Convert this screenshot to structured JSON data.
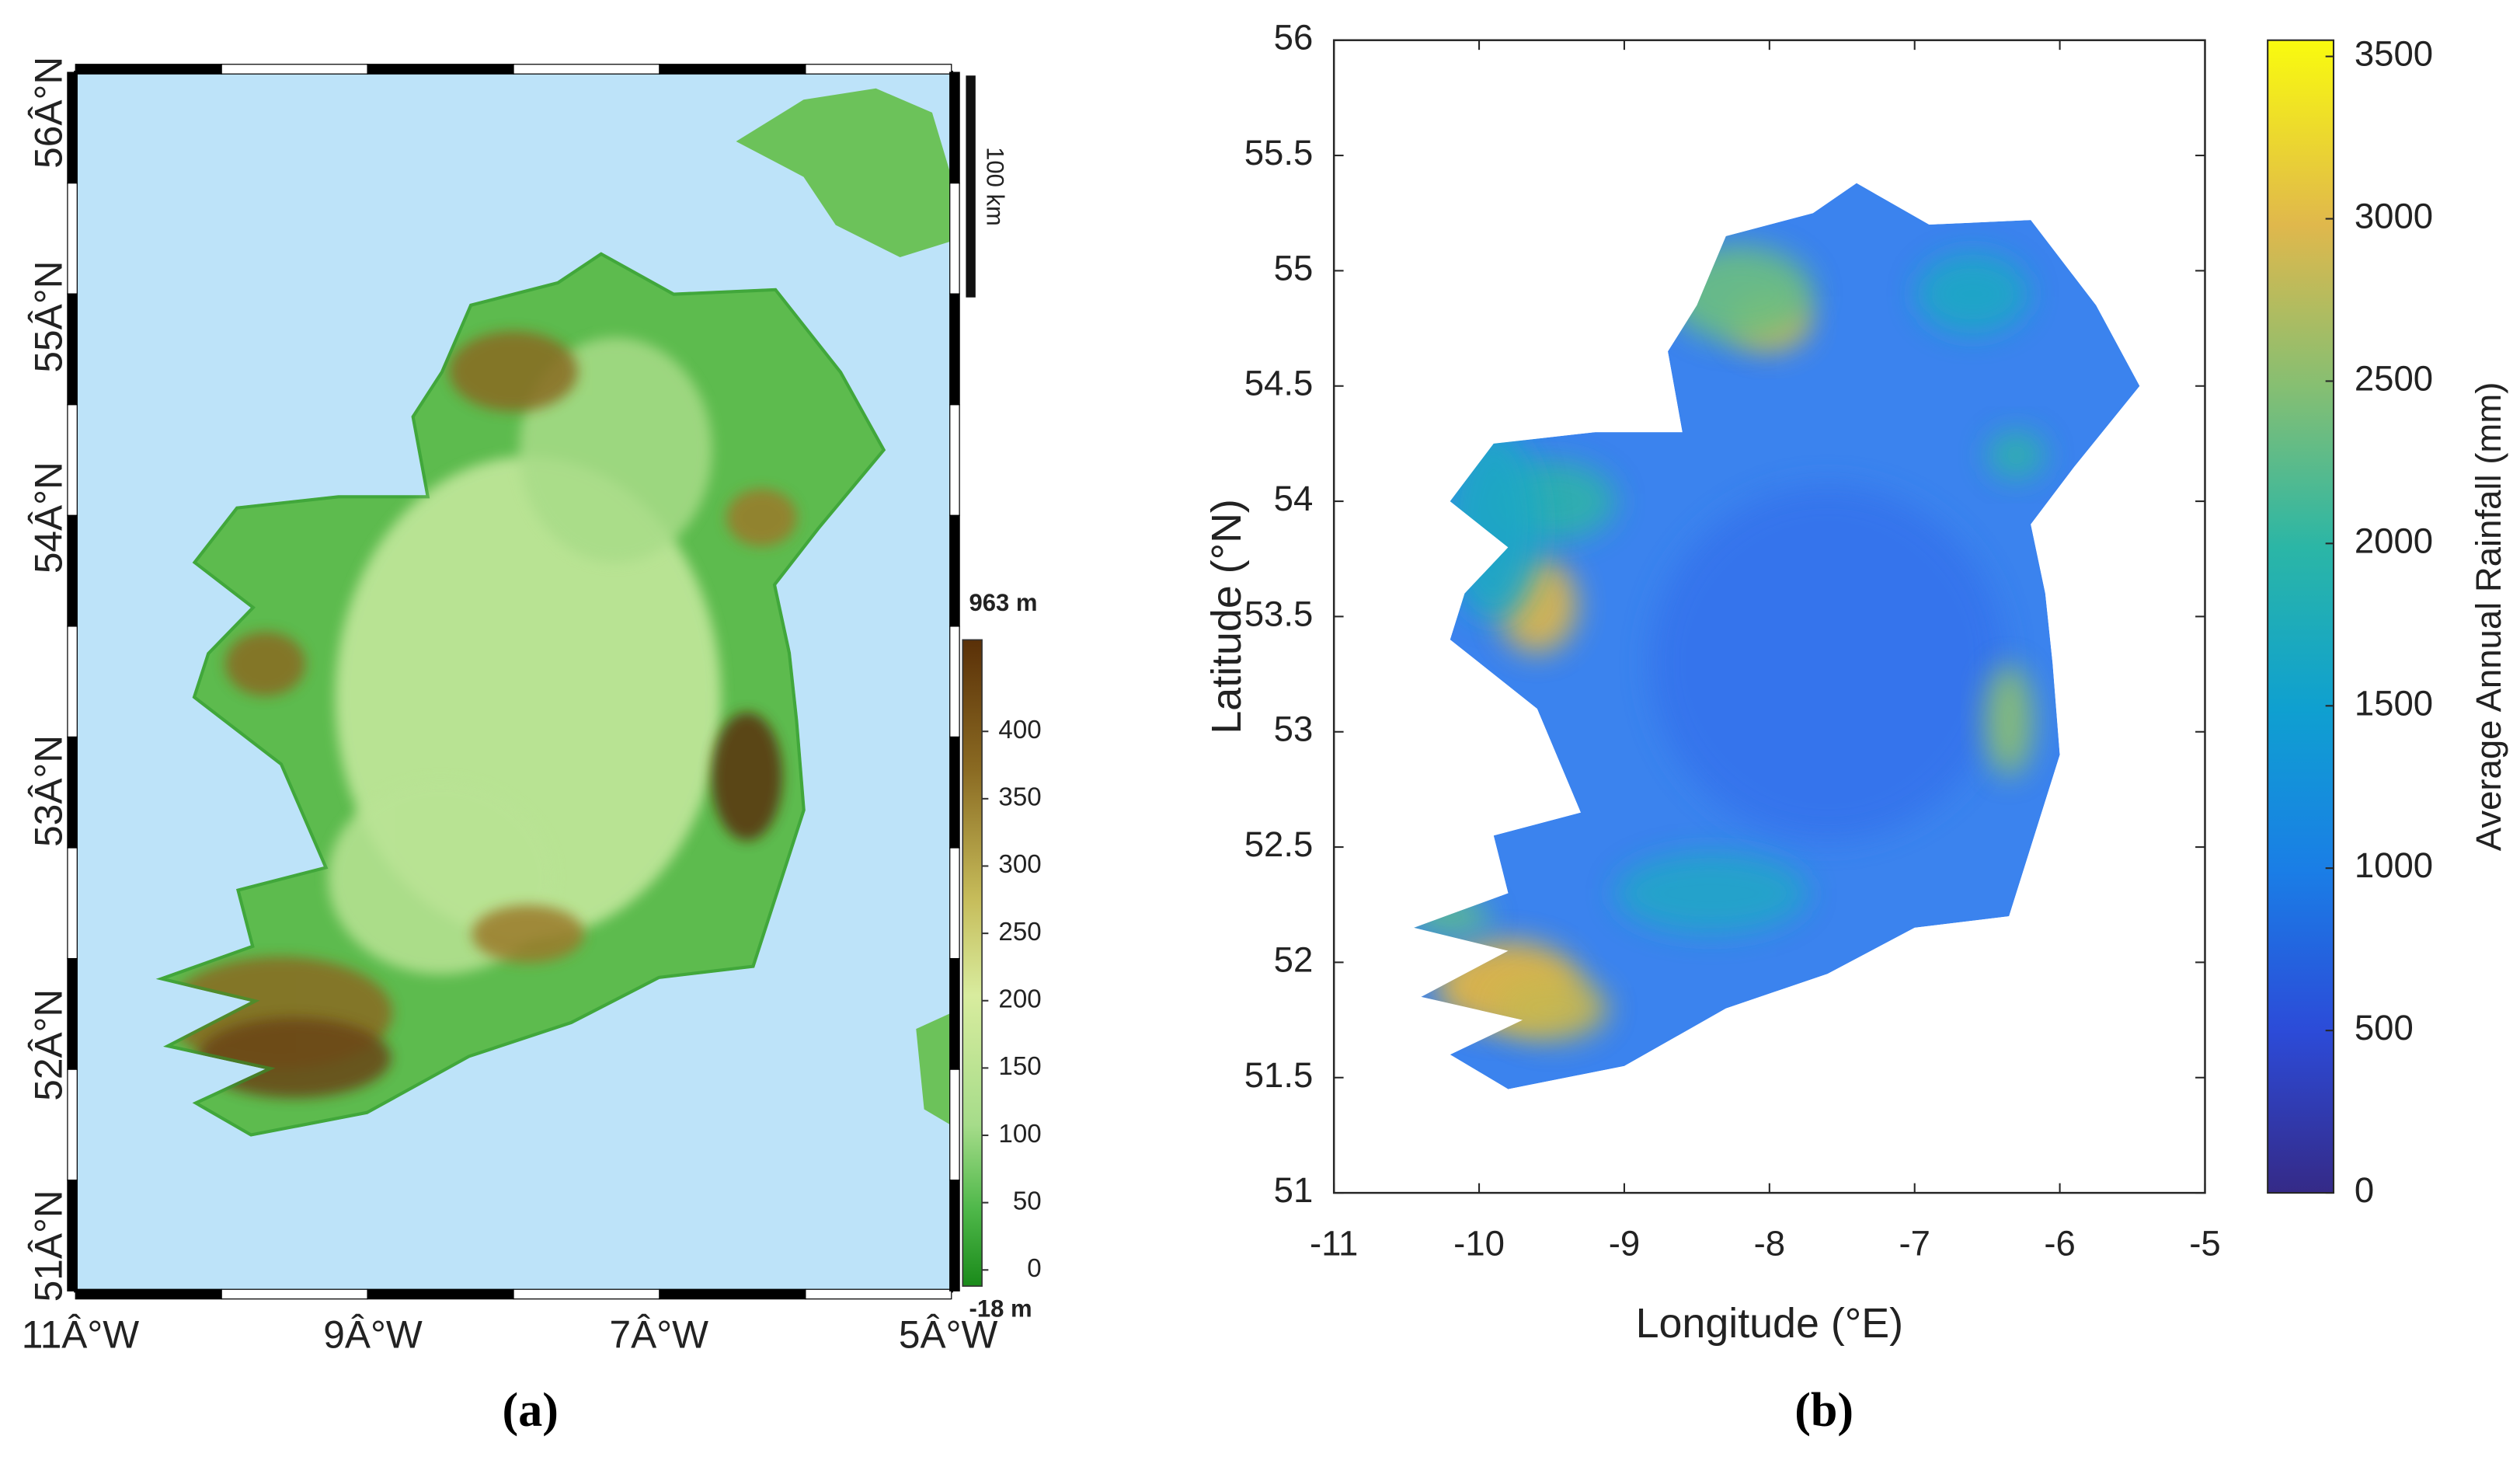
{
  "panel_a": {
    "lat_labels": [
      "56Â°N",
      "55Â°N",
      "54Â°N",
      "53Â°N",
      "52Â°N",
      "51Â°N"
    ],
    "lon_labels": [
      "11Â°W",
      "9Â°W",
      "7Â°W",
      "5Â°W"
    ],
    "scale_bar_label": "100 km",
    "colorbar": {
      "max_label": "963 m",
      "min_label": "-18 m",
      "lim": [
        -12,
        468
      ],
      "ticks": [
        0,
        50,
        100,
        150,
        200,
        250,
        300,
        350,
        400
      ]
    },
    "caption": "(a)"
  },
  "panel_b": {
    "type": "map",
    "xlabel": "Longitude (°E)",
    "ylabel": "Latitude (°N)",
    "xlim": [
      -11,
      -5
    ],
    "ylim": [
      51,
      56
    ],
    "xticks": [
      -11,
      -10,
      -9,
      -8,
      -7,
      -6,
      -5
    ],
    "yticks": [
      51,
      51.5,
      52,
      52.5,
      53,
      53.5,
      54,
      54.5,
      55,
      55.5,
      56
    ],
    "colorbar": {
      "label": "Average Annual Rainfall (mm)",
      "lim": [
        0,
        3550
      ],
      "ticks": [
        0,
        500,
        1000,
        1500,
        2000,
        2500,
        3000,
        3500
      ]
    },
    "caption": "(b)"
  }
}
